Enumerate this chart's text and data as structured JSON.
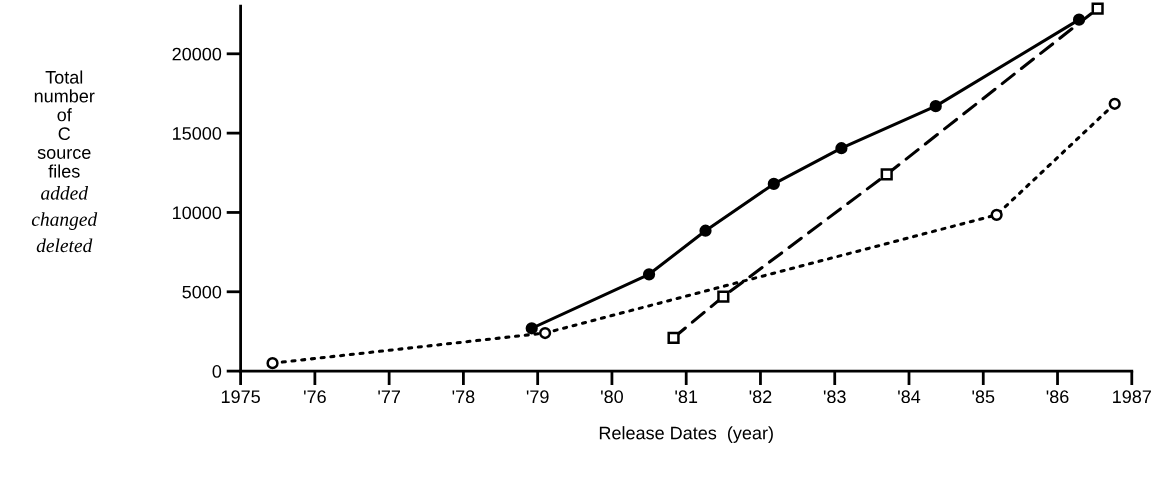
{
  "chart_data": {
    "type": "line",
    "xlabel": "Release Dates  (year)",
    "ylabel": "Total\nnumber\nof\nC\nsource\nfiles",
    "annotations": [
      "added",
      "changed",
      "deleted"
    ],
    "xlim": [
      1975,
      1987
    ],
    "xticks": [
      {
        "value": 1975,
        "label": "1975"
      },
      {
        "value": 1976,
        "label": "'76"
      },
      {
        "value": 1977,
        "label": "'77"
      },
      {
        "value": 1978,
        "label": "'78"
      },
      {
        "value": 1979,
        "label": "'79"
      },
      {
        "value": 1980,
        "label": "'80"
      },
      {
        "value": 1981,
        "label": "'81"
      },
      {
        "value": 1982,
        "label": "'82"
      },
      {
        "value": 1983,
        "label": "'83"
      },
      {
        "value": 1984,
        "label": "'84"
      },
      {
        "value": 1985,
        "label": "'85"
      },
      {
        "value": 1986,
        "label": "'86"
      },
      {
        "value": 1987,
        "label": "1987"
      }
    ],
    "ylim": [
      0,
      23000
    ],
    "yticks": [
      0,
      5000,
      10000,
      15000,
      20000
    ],
    "grid": false,
    "legend": false,
    "series": [
      {
        "color": "#000000",
        "marker": "circle",
        "line_style": "solid",
        "x": [
          1978.92,
          1980.5,
          1981.26,
          1982.18,
          1983.09,
          1984.36,
          1986.29
        ],
        "values": [
          2700,
          6100,
          8850,
          11800,
          14050,
          16700,
          22150
        ]
      },
      {
        "color": "#000000",
        "marker": "square",
        "line_style": "dashed",
        "x": [
          1980.83,
          1981.5,
          1983.7,
          1986.54
        ],
        "values": [
          2100,
          4700,
          12400,
          22850
        ]
      },
      {
        "color": "#000000",
        "marker": "circle",
        "line_style": "dotted",
        "x": [
          1975.43,
          1979.1,
          1985.18,
          1986.77
        ],
        "values": [
          500,
          2400,
          9850,
          16850
        ]
      }
    ]
  }
}
